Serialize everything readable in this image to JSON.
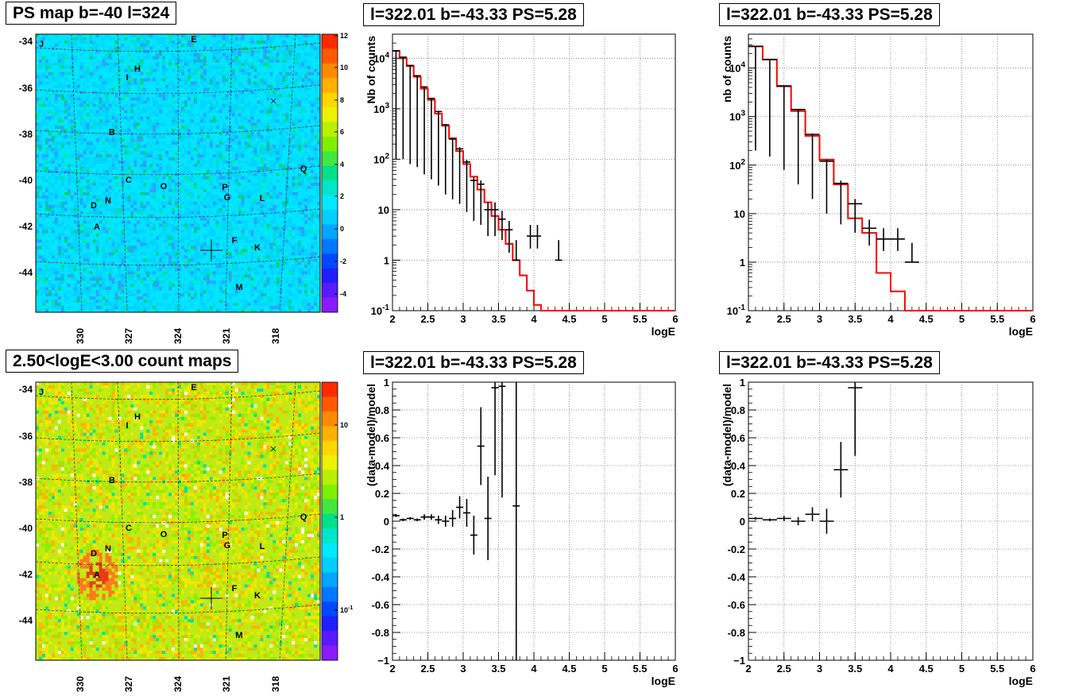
{
  "titles": {
    "map_top": "PS map b=-40 l=324",
    "map_bottom": "2.50<logE<3.00 count maps",
    "spec": "l=322.01 b=-43.33 PS=5.28"
  },
  "map_axes": {
    "y_ticks": [
      "-34",
      "-36",
      "-38",
      "-40",
      "-42",
      "-44"
    ],
    "x_ticks": [
      "330",
      "327",
      "324",
      "321",
      "318"
    ],
    "sources": [
      "J",
      "E",
      "H",
      "I",
      "B",
      "Q",
      "C",
      "O",
      "P",
      "G",
      "L",
      "D",
      "N",
      "A",
      "F",
      "K",
      "M"
    ],
    "colorbar_top": {
      "ticks": [
        "12",
        "10",
        "8",
        "6",
        "4",
        "2",
        "0",
        "-2",
        "-4"
      ],
      "min": -5,
      "max": 12
    },
    "colorbar_bottom": {
      "ticks": [
        "10",
        "1",
        "10-1"
      ],
      "scale": "log"
    },
    "colors": {
      "map_top_base": "#00e5ff",
      "map_bottom_base": "#c0ea16",
      "hotspot": "#e83a18"
    }
  },
  "labels": {
    "logE": "logE",
    "nb_counts": "Nb of counts",
    "nb_counts_lower": "nb of counts",
    "residual": "(data-model)/model"
  },
  "chart_data": [
    {
      "type": "line",
      "panel": "top-middle",
      "title": "l=322.01 b=-43.33 PS=5.28",
      "xlabel": "logE",
      "ylabel": "Nb of counts",
      "xlim": [
        2,
        6
      ],
      "ylim": [
        0.1,
        30000
      ],
      "yscale": "log",
      "x_ticks": [
        "2",
        "2.5",
        "3",
        "3.5",
        "4",
        "4.5",
        "5",
        "5.5",
        "6"
      ],
      "y_ticks": [
        "10^4",
        "10^3",
        "10^2",
        "10",
        "1",
        "10^-1"
      ],
      "grid": true,
      "series": [
        {
          "color": "#ff0000",
          "style": "step",
          "x": [
            2.0,
            2.1,
            2.2,
            2.3,
            2.4,
            2.5,
            2.6,
            2.7,
            2.8,
            2.9,
            3.0,
            3.1,
            3.2,
            3.3,
            3.4,
            3.5,
            3.6,
            3.7,
            3.8,
            3.9,
            4.0,
            4.1,
            4.2,
            4.3,
            4.4,
            4.5,
            4.6,
            4.7,
            4.8,
            4.9,
            5.0,
            5.1,
            5.2,
            5.3,
            5.4,
            5.5,
            5.6,
            5.7,
            5.8,
            5.9
          ],
          "values": [
            14000,
            10000,
            7000,
            4300,
            2500,
            1500,
            800,
            460,
            260,
            145,
            80,
            45,
            25,
            14,
            7.5,
            4,
            2.1,
            1.0,
            0.5,
            0.25,
            0.13,
            0.1,
            0.1,
            0.1,
            0.1,
            0.1,
            0.1,
            0.1,
            0.1,
            0.1,
            0.1,
            0.1,
            0.1,
            0.1,
            0.1,
            0.1,
            0.1,
            0.1,
            0.1,
            0.1
          ]
        },
        {
          "color": "#000000",
          "style": "points",
          "x": [
            2.05,
            2.15,
            2.25,
            2.35,
            2.45,
            2.55,
            2.65,
            2.75,
            2.85,
            2.95,
            3.05,
            3.15,
            3.25,
            3.35,
            3.45,
            3.55,
            3.65,
            3.75,
            3.95,
            4.05,
            4.35
          ],
          "values": [
            14000,
            10500,
            7200,
            4500,
            2700,
            1600,
            880,
            480,
            250,
            160,
            88,
            38,
            32,
            10,
            10,
            6.5,
            4,
            1,
            3,
            3,
            1
          ],
          "err_low": [
            13900,
            10400,
            7120,
            4430,
            2650,
            1560,
            850,
            460,
            234,
            147,
            79,
            32,
            27,
            7,
            7,
            4,
            2.6,
            0,
            1.3,
            1.3,
            0
          ],
          "err_high": [
            14100,
            10600,
            7280,
            4570,
            2750,
            1640,
            910,
            500,
            266,
            173,
            97,
            44,
            38,
            14,
            14,
            9.5,
            6,
            2.5,
            5,
            5,
            2.5
          ]
        }
      ]
    },
    {
      "type": "line",
      "panel": "top-right",
      "title": "l=322.01 b=-43.33 PS=5.28",
      "xlabel": "logE",
      "ylabel": "nb of counts",
      "xlim": [
        2,
        6
      ],
      "ylim": [
        0.1,
        50000
      ],
      "yscale": "log",
      "x_ticks": [
        "2",
        "2.5",
        "3",
        "3.5",
        "4",
        "4.5",
        "5",
        "5.5",
        "6"
      ],
      "y_ticks": [
        "10^4",
        "10^3",
        "10^2",
        "10",
        "1",
        "10^-1"
      ],
      "grid": true,
      "series": [
        {
          "color": "#ff0000",
          "style": "step",
          "x": [
            2.0,
            2.2,
            2.4,
            2.6,
            2.8,
            3.0,
            3.2,
            3.4,
            3.6,
            3.8,
            4.0,
            4.2,
            4.4,
            4.6,
            4.8,
            5.0,
            5.2,
            5.4,
            5.6,
            5.8
          ],
          "values": [
            28000,
            15000,
            4200,
            1300,
            400,
            130,
            40,
            8,
            4,
            0.6,
            0.25,
            0.1,
            0.1,
            0.1,
            0.1,
            0.1,
            0.1,
            0.1,
            0.1,
            0.1
          ]
        },
        {
          "color": "#000000",
          "style": "points",
          "x": [
            2.1,
            2.3,
            2.5,
            2.7,
            2.9,
            3.1,
            3.3,
            3.5,
            3.7,
            3.9,
            4.1,
            4.3
          ],
          "values": [
            28000,
            15000,
            4300,
            1400,
            430,
            120,
            42,
            16,
            5,
            3,
            3,
            1
          ],
          "err_low": [
            27800,
            14850,
            4220,
            1360,
            410,
            110,
            36,
            12,
            2.8,
            1.3,
            1.3,
            0
          ],
          "err_high": [
            28200,
            15150,
            4380,
            1440,
            450,
            130,
            48,
            20,
            7.5,
            5,
            5,
            2.5
          ]
        }
      ]
    },
    {
      "type": "scatter",
      "panel": "bottom-middle",
      "title": "l=322.01 b=-43.33 PS=5.28",
      "xlabel": "logE",
      "ylabel": "(data-model)/model",
      "xlim": [
        2,
        6
      ],
      "ylim": [
        -1,
        1
      ],
      "x_ticks": [
        "2",
        "2.5",
        "3",
        "3.5",
        "4",
        "4.5",
        "5",
        "5.5",
        "6"
      ],
      "y_ticks": [
        "1",
        "0.8",
        "0.6",
        "0.4",
        "0.2",
        "0",
        "-0.2",
        "-0.4",
        "-0.6",
        "-0.8",
        "-1"
      ],
      "grid": true,
      "series": [
        {
          "color": "#000000",
          "x": [
            2.05,
            2.15,
            2.25,
            2.35,
            2.45,
            2.55,
            2.65,
            2.75,
            2.85,
            2.95,
            3.05,
            3.15,
            3.25,
            3.35,
            3.45,
            3.55,
            3.75
          ],
          "values": [
            0.04,
            0.01,
            0.02,
            0.01,
            0.03,
            0.03,
            0.01,
            0.0,
            0.02,
            0.1,
            0.06,
            -0.1,
            0.54,
            0.02,
            0.96,
            0.97,
            0.11
          ],
          "err": [
            0.01,
            0.01,
            0.01,
            0.01,
            0.02,
            0.02,
            0.03,
            0.04,
            0.06,
            0.08,
            0.1,
            0.14,
            0.28,
            0.3,
            0.63,
            0.8,
            1.12
          ]
        }
      ]
    },
    {
      "type": "scatter",
      "panel": "bottom-right",
      "title": "l=322.01 b=-43.33 PS=5.28",
      "xlabel": "logE",
      "ylabel": "(data-model)/model",
      "xlim": [
        2,
        6
      ],
      "ylim": [
        -1,
        1
      ],
      "x_ticks": [
        "2",
        "2.5",
        "3",
        "3.5",
        "4",
        "4.5",
        "5",
        "5.5",
        "6"
      ],
      "y_ticks": [
        "1",
        "0.8",
        "0.6",
        "0.4",
        "0.2",
        "0",
        "-0.2",
        "-0.4",
        "-0.6",
        "-0.8",
        "-1"
      ],
      "grid": true,
      "series": [
        {
          "color": "#000000",
          "x": [
            2.1,
            2.3,
            2.5,
            2.7,
            2.9,
            3.1,
            3.3,
            3.5
          ],
          "values": [
            0.02,
            0.01,
            0.02,
            0.0,
            0.05,
            0.0,
            0.37,
            0.96
          ],
          "err": [
            0.01,
            0.01,
            0.02,
            0.03,
            0.05,
            0.09,
            0.2,
            0.49
          ]
        }
      ]
    }
  ]
}
